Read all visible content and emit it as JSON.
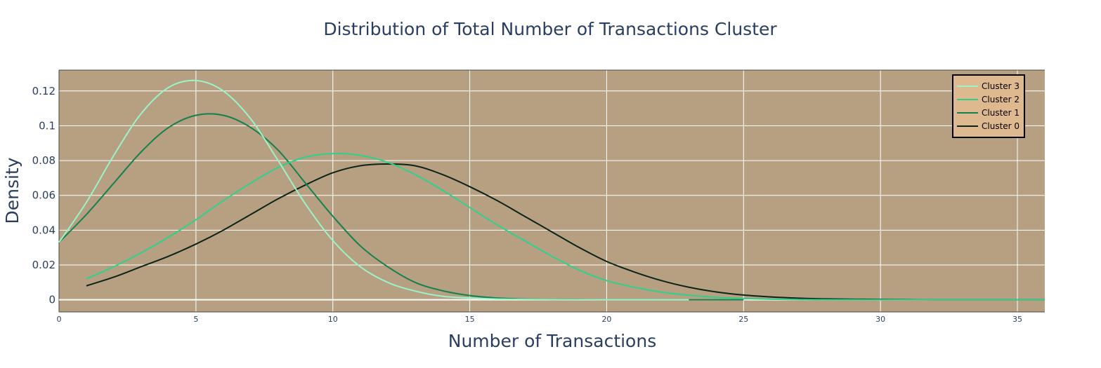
{
  "colors": {
    "plot_bg": "#b79f82",
    "legend_bg": "#deb88f",
    "grid": "#ffffff",
    "text": "#2a3f5f"
  },
  "chart_data": {
    "type": "line",
    "title": "Distribution of Total Number of Transactions Cluster",
    "xlabel": "Number of Transactions",
    "ylabel": "Density",
    "xlim": [
      0,
      36
    ],
    "ylim": [
      -0.007,
      0.132
    ],
    "xticks": [
      0,
      5,
      10,
      15,
      20,
      25,
      30,
      35
    ],
    "xtick_labels": [
      "0",
      "5",
      "10",
      "15",
      "20",
      "25",
      "30",
      "35"
    ],
    "yticks": [
      0,
      0.02,
      0.04,
      0.06,
      0.08,
      0.1,
      0.12
    ],
    "ytick_labels": [
      "0",
      "0.02",
      "0.04",
      "0.06",
      "0.08",
      "0.1",
      "0.12"
    ],
    "grid": true,
    "legend_position": "top-right",
    "series": [
      {
        "name": "Cluster 3",
        "color": "#9af3c9",
        "x": [
          0,
          1,
          2,
          3,
          4,
          5,
          6,
          7,
          8,
          9,
          10,
          11,
          12,
          13,
          14,
          15,
          16,
          17,
          18,
          19,
          20,
          21,
          22,
          23
        ],
        "values": [
          0.033,
          0.056,
          0.083,
          0.107,
          0.122,
          0.126,
          0.12,
          0.104,
          0.08,
          0.055,
          0.034,
          0.019,
          0.01,
          0.005,
          0.002,
          0.001,
          0.0004,
          0.0002,
          0.0001,
          0,
          0,
          0,
          0,
          0
        ]
      },
      {
        "name": "Cluster 2",
        "color": "#2ed08a",
        "x": [
          1,
          2,
          3,
          4,
          5,
          6,
          7,
          8,
          9,
          10,
          11,
          12,
          13,
          14,
          15,
          16,
          17,
          18,
          19,
          20,
          21,
          22,
          23,
          24,
          25,
          26,
          27,
          28,
          29,
          30,
          31,
          32,
          33,
          34,
          35,
          36
        ],
        "values": [
          0.012,
          0.019,
          0.027,
          0.036,
          0.046,
          0.057,
          0.067,
          0.076,
          0.082,
          0.084,
          0.083,
          0.079,
          0.072,
          0.063,
          0.053,
          0.043,
          0.034,
          0.025,
          0.017,
          0.011,
          0.0072,
          0.0044,
          0.0026,
          0.0014,
          0.0007,
          0.0003,
          0.0001,
          0,
          0,
          0,
          0,
          0,
          0,
          0,
          0,
          0
        ]
      },
      {
        "name": "Cluster 1",
        "color": "#13804e",
        "x": [
          0,
          1,
          2,
          3,
          4,
          5,
          6,
          7,
          8,
          9,
          10,
          11,
          12,
          13,
          14,
          15,
          16,
          17,
          18,
          19,
          20,
          21,
          22,
          23,
          24,
          25
        ],
        "values": [
          0.033,
          0.049,
          0.067,
          0.085,
          0.099,
          0.106,
          0.106,
          0.099,
          0.086,
          0.067,
          0.048,
          0.031,
          0.019,
          0.01,
          0.0052,
          0.0024,
          0.001,
          0.0004,
          0.0002,
          0.0001,
          0,
          0,
          0,
          0,
          0,
          0
        ]
      },
      {
        "name": "Cluster 0",
        "color": "#0a2417",
        "x": [
          1,
          2,
          3,
          4,
          5,
          6,
          7,
          8,
          9,
          10,
          11,
          12,
          13,
          14,
          15,
          16,
          17,
          18,
          19,
          20,
          21,
          22,
          23,
          24,
          25,
          26,
          27,
          28,
          29,
          30,
          31,
          32,
          33,
          34,
          35,
          36
        ],
        "values": [
          0.008,
          0.013,
          0.019,
          0.025,
          0.032,
          0.04,
          0.049,
          0.058,
          0.066,
          0.073,
          0.077,
          0.078,
          0.077,
          0.072,
          0.065,
          0.057,
          0.048,
          0.039,
          0.03,
          0.022,
          0.016,
          0.011,
          0.0072,
          0.0045,
          0.0027,
          0.0016,
          0.0009,
          0.0005,
          0.0003,
          0.0002,
          0.0001,
          0,
          0,
          0,
          0,
          0
        ]
      }
    ]
  }
}
